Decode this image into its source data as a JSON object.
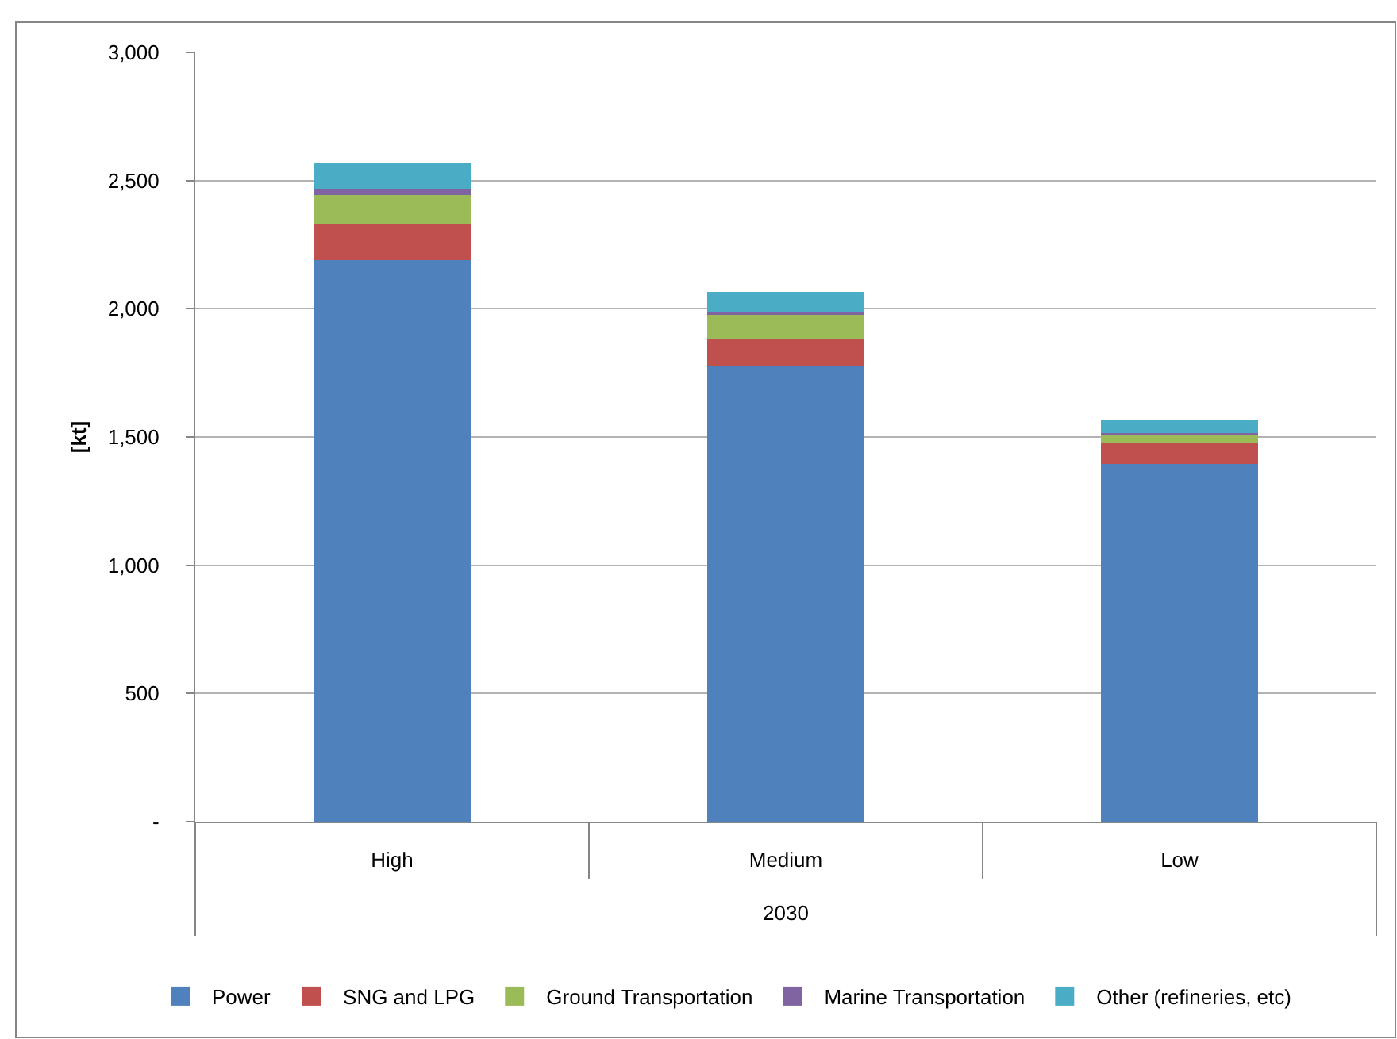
{
  "chart_data": {
    "type": "bar",
    "stacked": true,
    "categories": [
      "High",
      "Medium",
      "Low"
    ],
    "xlabel": "2030",
    "ylabel": "[kt]",
    "ylim": [
      0,
      3000
    ],
    "yticks": [
      {
        "value": 0,
        "label": "-"
      },
      500,
      {
        "value": 1000,
        "label": "1,000"
      },
      {
        "value": 1500,
        "label": "1,500"
      },
      {
        "value": 2000,
        "label": "2,000"
      },
      {
        "value": 2500,
        "label": "2,500"
      },
      {
        "value": 3000,
        "label": "3,000"
      }
    ],
    "grid": "y",
    "legend": "bottom",
    "series": [
      {
        "name": "Power",
        "color": "#4f81bd",
        "values": [
          2190,
          1775,
          1395
        ]
      },
      {
        "name": "SNG and LPG",
        "color": "#c0504d",
        "values": [
          140,
          110,
          84
        ]
      },
      {
        "name": "Ground Transportation",
        "color": "#9bbb59",
        "values": [
          112,
          91,
          31
        ]
      },
      {
        "name": "Marine Transportation",
        "color": "#8064a2",
        "values": [
          27,
          14,
          5
        ]
      },
      {
        "name": "Other (refineries, etc)",
        "color": "#4bacc6",
        "values": [
          99,
          76,
          50
        ]
      }
    ]
  }
}
